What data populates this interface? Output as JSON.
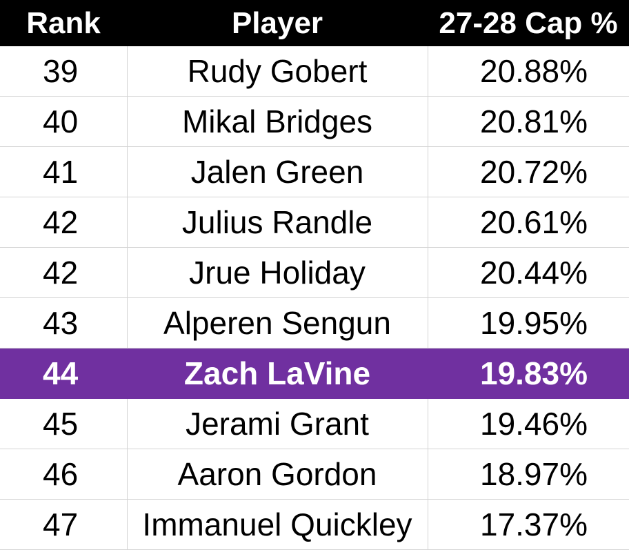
{
  "colors": {
    "header_bg": "#000000",
    "header_text": "#ffffff",
    "highlight_bg": "#7030a0",
    "highlight_text": "#ffffff",
    "gridline": "#d4d4d4"
  },
  "table": {
    "headers": {
      "rank": "Rank",
      "player": "Player",
      "cap": "27-28 Cap %"
    },
    "rows": [
      {
        "rank": "39",
        "player": "Rudy Gobert",
        "cap": "20.88%",
        "highlighted": false
      },
      {
        "rank": "40",
        "player": "Mikal Bridges",
        "cap": "20.81%",
        "highlighted": false
      },
      {
        "rank": "41",
        "player": "Jalen Green",
        "cap": "20.72%",
        "highlighted": false
      },
      {
        "rank": "42",
        "player": "Julius Randle",
        "cap": "20.61%",
        "highlighted": false
      },
      {
        "rank": "42",
        "player": "Jrue Holiday",
        "cap": "20.44%",
        "highlighted": false
      },
      {
        "rank": "43",
        "player": "Alperen Sengun",
        "cap": "19.95%",
        "highlighted": false
      },
      {
        "rank": "44",
        "player": "Zach LaVine",
        "cap": "19.83%",
        "highlighted": true
      },
      {
        "rank": "45",
        "player": "Jerami Grant",
        "cap": "19.46%",
        "highlighted": false
      },
      {
        "rank": "46",
        "player": "Aaron Gordon",
        "cap": "18.97%",
        "highlighted": false
      },
      {
        "rank": "47",
        "player": "Immanuel Quickley",
        "cap": "17.37%",
        "highlighted": false
      }
    ]
  }
}
